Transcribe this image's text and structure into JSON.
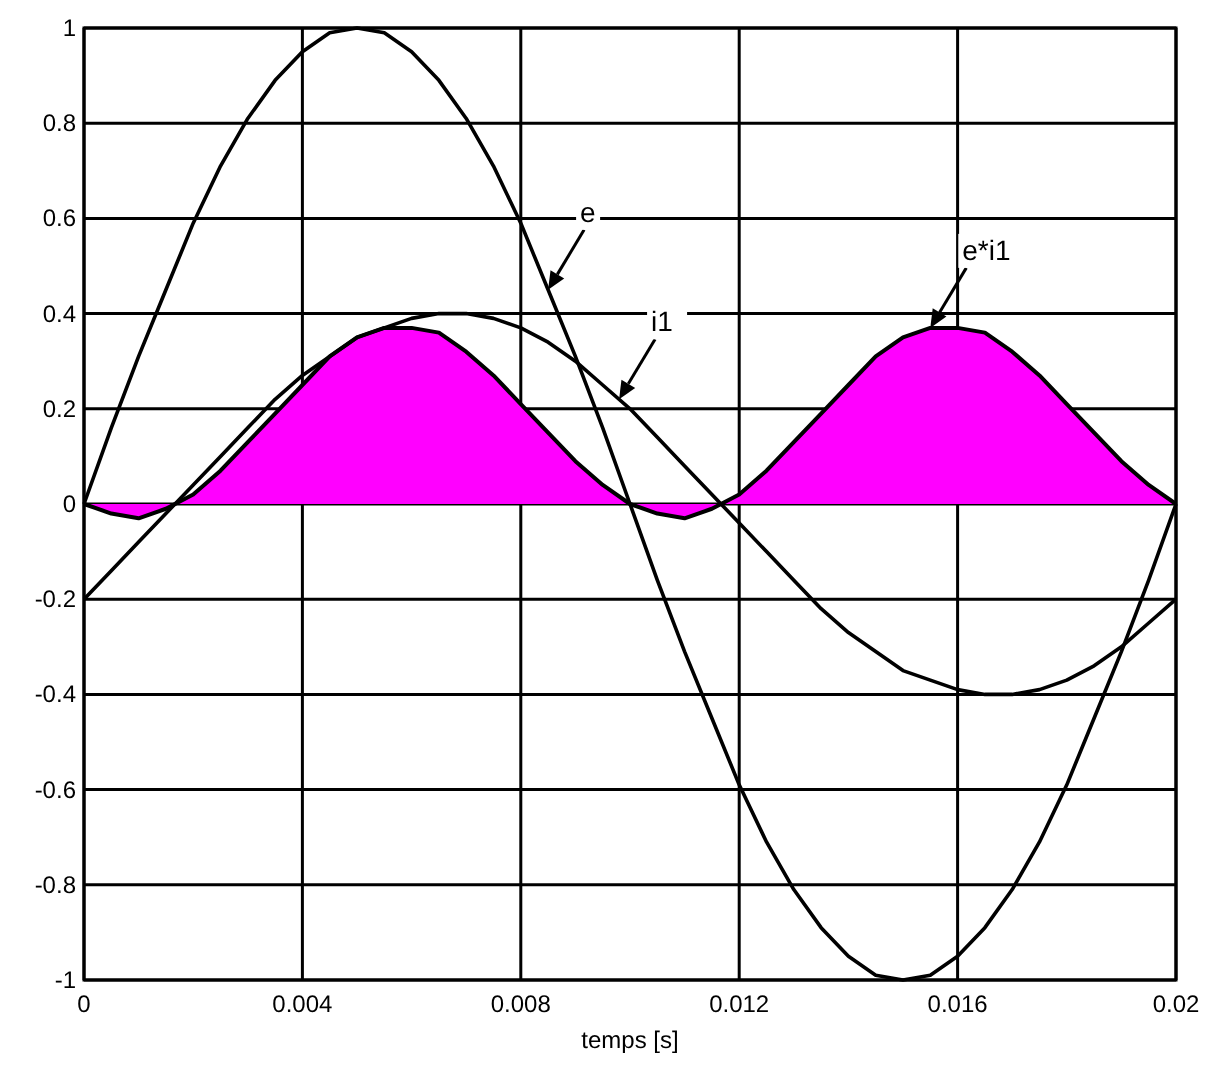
{
  "chart_data": {
    "type": "line",
    "xlabel": "temps [s]",
    "x": [
      0,
      0.0005,
      0.001,
      0.0015,
      0.002,
      0.0025,
      0.003,
      0.0035,
      0.004,
      0.0045,
      0.005,
      0.0055,
      0.006,
      0.0065,
      0.007,
      0.0075,
      0.008,
      0.0085,
      0.009,
      0.0095,
      0.01,
      0.0105,
      0.011,
      0.0115,
      0.012,
      0.0125,
      0.013,
      0.0135,
      0.014,
      0.0145,
      0.015,
      0.0155,
      0.016,
      0.0165,
      0.017,
      0.0175,
      0.018,
      0.0185,
      0.019,
      0.0195,
      0.02
    ],
    "series": [
      {
        "type": "area",
        "color": "#ff00ff",
        "values": [
          0,
          -0.02,
          -0.03,
          -0.01,
          0.02,
          0.07,
          0.13,
          0.19,
          0.25,
          0.31,
          0.35,
          0.37,
          0.37,
          0.36,
          0.32,
          0.27,
          0.21,
          0.15,
          0.09,
          0.04,
          0,
          -0.02,
          -0.03,
          -0.01,
          0.02,
          0.07,
          0.13,
          0.19,
          0.25,
          0.31,
          0.35,
          0.37,
          0.37,
          0.36,
          0.32,
          0.27,
          0.21,
          0.15,
          0.09,
          0.04,
          0
        ]
      },
      {
        "color": "#000000",
        "values": [
          0,
          0.16,
          0.31,
          0.45,
          0.59,
          0.71,
          0.81,
          0.89,
          0.95,
          0.99,
          1,
          0.99,
          0.95,
          0.89,
          0.81,
          0.71,
          0.59,
          0.45,
          0.31,
          0.16,
          0,
          -0.16,
          -0.31,
          -0.45,
          -0.59,
          -0.71,
          -0.81,
          -0.89,
          -0.95,
          -0.99,
          -1,
          -0.99,
          -0.95,
          -0.89,
          -0.81,
          -0.71,
          -0.59,
          -0.45,
          -0.31,
          -0.16,
          0
        ]
      },
      {
        "color": "#000000",
        "values": [
          -0.2,
          -0.14,
          -0.08,
          -0.02,
          0.04,
          0.1,
          0.16,
          0.22,
          0.27,
          0.31,
          0.35,
          0.37,
          0.39,
          0.4,
          0.4,
          0.39,
          0.37,
          0.34,
          0.3,
          0.25,
          0.2,
          0.14,
          0.08,
          0.02,
          -0.04,
          -0.1,
          -0.16,
          -0.22,
          -0.27,
          -0.31,
          -0.35,
          -0.37,
          -0.39,
          -0.4,
          -0.4,
          -0.39,
          -0.37,
          -0.34,
          -0.3,
          -0.25,
          -0.2
        ]
      }
    ],
    "annotations": [
      {
        "text": "e",
        "x": 0.0085,
        "y": 0.45
      },
      {
        "text": "i1",
        "x": 0.0098,
        "y": 0.22
      },
      {
        "text": "e*i1",
        "x": 0.0155,
        "y": 0.37
      }
    ],
    "xlim": [
      0,
      0.02
    ],
    "xticks": [
      0,
      0.004,
      0.008,
      0.012,
      0.016,
      0.02
    ],
    "ylim": [
      -1,
      1
    ],
    "yticks": [
      -1,
      -0.8,
      -0.6,
      -0.4,
      -0.2,
      0,
      0.2,
      0.4,
      0.6,
      0.8,
      1
    ],
    "grid": true,
    "marker": "none",
    "line_style": "solid"
  }
}
